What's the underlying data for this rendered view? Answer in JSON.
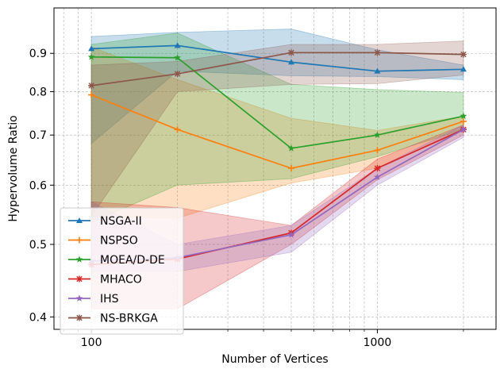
{
  "chart_data": {
    "type": "line",
    "title": "",
    "xlabel": "Number of Vertices",
    "ylabel": "Hypervolume Ratio",
    "x_scale": "log",
    "y_scale": "log",
    "xlim": [
      74,
      2600
    ],
    "ylim": [
      0.385,
      1.035
    ],
    "x_ticks": [
      {
        "value": 100,
        "label": "100"
      },
      {
        "value": 1000,
        "label": "1000"
      }
    ],
    "y_ticks": [
      {
        "value": 0.4,
        "label": "0.4"
      },
      {
        "value": 0.5,
        "label": "0.5"
      },
      {
        "value": 0.6,
        "label": "0.6"
      },
      {
        "value": 0.7,
        "label": "0.7"
      },
      {
        "value": 0.8,
        "label": "0.8"
      },
      {
        "value": 0.9,
        "label": "0.9"
      }
    ],
    "grid": true,
    "legend_position": "lower-left",
    "x": [
      100,
      200,
      500,
      1000,
      2000
    ],
    "series": [
      {
        "name": "NSGA-II",
        "color": "#1f77b4",
        "marker": "triangle",
        "values": [
          0.913,
          0.922,
          0.876,
          0.852,
          0.857
        ],
        "lower": [
          0.682,
          0.852,
          0.84,
          0.838,
          0.83
        ],
        "upper": [
          0.948,
          0.96,
          0.97,
          0.91,
          0.868
        ]
      },
      {
        "name": "NSPSO",
        "color": "#ff7f0e",
        "marker": "plus",
        "values": [
          0.792,
          0.712,
          0.632,
          0.668,
          0.73
        ],
        "lower": [
          0.545,
          0.542,
          0.604,
          0.632,
          0.71
        ],
        "upper": [
          0.918,
          0.83,
          0.737,
          0.71,
          0.742
        ]
      },
      {
        "name": "MOEA/D-DE",
        "color": "#2ca02c",
        "marker": "star",
        "values": [
          0.89,
          0.888,
          0.672,
          0.7,
          0.742
        ],
        "lower": [
          0.535,
          0.6,
          0.612,
          0.655,
          0.712
        ],
        "upper": [
          0.925,
          0.958,
          0.818,
          0.805,
          0.798
        ]
      },
      {
        "name": "MHACO",
        "color": "#d62728",
        "marker": "x",
        "values": [
          0.47,
          0.478,
          0.518,
          0.632,
          0.712
        ],
        "lower": [
          0.41,
          0.41,
          0.5,
          0.61,
          0.7
        ],
        "upper": [
          0.57,
          0.56,
          0.53,
          0.65,
          0.722
        ]
      },
      {
        "name": "IHS",
        "color": "#9467bd",
        "marker": "star",
        "values": [
          0.475,
          0.48,
          0.515,
          0.615,
          0.712
        ],
        "lower": [
          0.46,
          0.46,
          0.488,
          0.6,
          0.695
        ],
        "upper": [
          0.57,
          0.5,
          0.53,
          0.632,
          0.722
        ]
      },
      {
        "name": "NS-BRKGA",
        "color": "#8c564b",
        "marker": "x",
        "values": [
          0.815,
          0.845,
          0.902,
          0.902,
          0.897
        ],
        "lower": [
          0.545,
          0.8,
          0.818,
          0.82,
          0.842
        ],
        "upper": [
          0.868,
          0.878,
          0.925,
          0.925,
          0.935
        ]
      }
    ]
  }
}
